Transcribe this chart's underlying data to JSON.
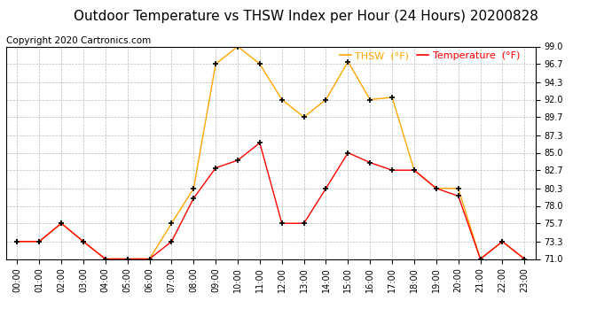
{
  "title": "Outdoor Temperature vs THSW Index per Hour (24 Hours) 20200828",
  "copyright": "Copyright 2020 Cartronics.com",
  "x_labels": [
    "00:00",
    "01:00",
    "02:00",
    "03:00",
    "04:00",
    "05:00",
    "06:00",
    "07:00",
    "08:00",
    "09:00",
    "10:00",
    "11:00",
    "12:00",
    "13:00",
    "14:00",
    "15:00",
    "16:00",
    "17:00",
    "18:00",
    "19:00",
    "20:00",
    "21:00",
    "22:00",
    "23:00"
  ],
  "thsw": [
    73.3,
    73.3,
    75.7,
    73.3,
    71.0,
    71.0,
    71.0,
    75.7,
    80.3,
    96.7,
    99.0,
    96.7,
    92.0,
    89.7,
    92.0,
    97.0,
    92.0,
    92.3,
    82.7,
    80.3,
    80.3,
    71.0,
    73.3,
    71.0
  ],
  "temperature": [
    73.3,
    73.3,
    75.7,
    73.3,
    71.0,
    71.0,
    71.0,
    73.3,
    79.0,
    83.0,
    84.0,
    86.3,
    75.7,
    75.7,
    80.3,
    85.0,
    83.7,
    82.7,
    82.7,
    80.3,
    79.3,
    71.0,
    73.3,
    71.0
  ],
  "thsw_color": "orange",
  "temp_color": "red",
  "marker_color": "black",
  "ylim_min": 71.0,
  "ylim_max": 99.0,
  "yticks": [
    71.0,
    73.3,
    75.7,
    78.0,
    80.3,
    82.7,
    85.0,
    87.3,
    89.7,
    92.0,
    94.3,
    96.7,
    99.0
  ],
  "background_color": "white",
  "grid_color": "#bbbbbb",
  "legend_thsw": "THSW  (°F)",
  "legend_temp": "Temperature  (°F)",
  "title_fontsize": 11,
  "copyright_fontsize": 7.5,
  "legend_fontsize": 8,
  "tick_fontsize": 7,
  "marker_size": 5
}
